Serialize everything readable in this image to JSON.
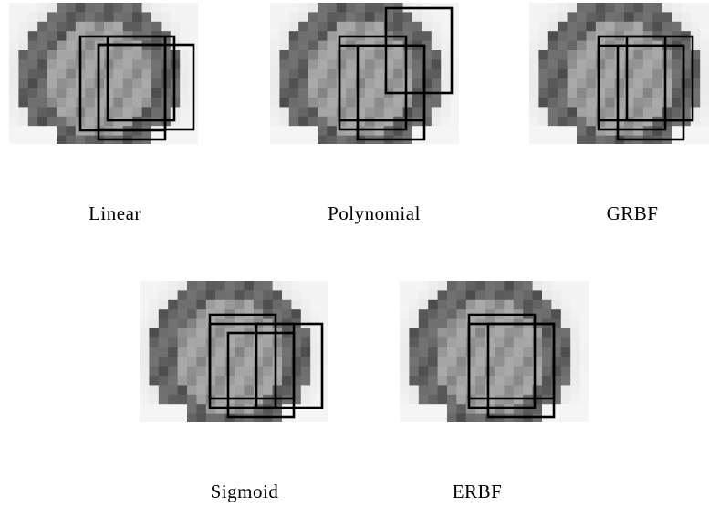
{
  "captions": [
    "Linear",
    "Polynomial",
    "GRBF",
    "Sigmoid",
    "ERBF"
  ]
}
